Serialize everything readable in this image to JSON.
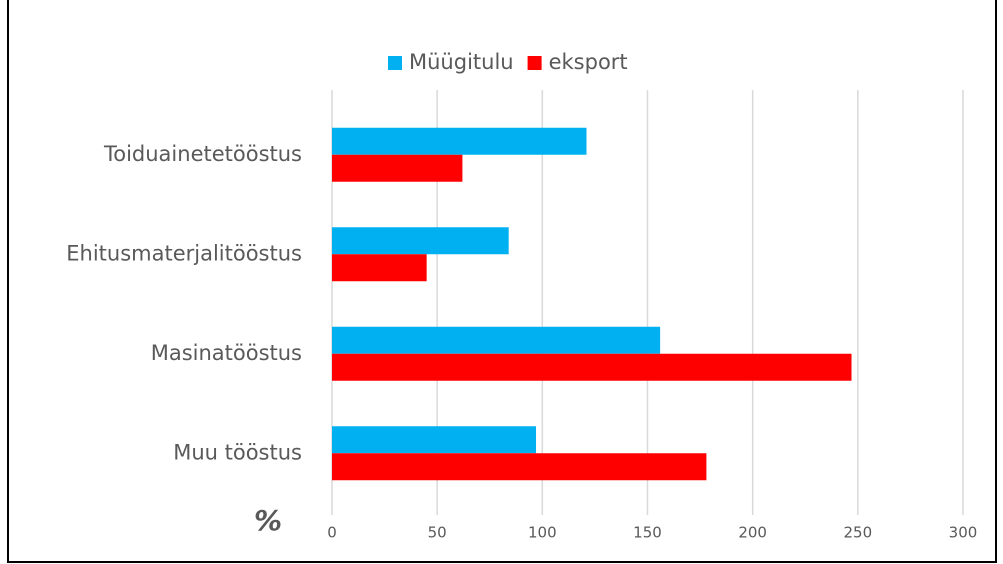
{
  "chart_data": {
    "type": "hbar",
    "categories": [
      "Toiduainetetööstus",
      "Ehitusmaterjalitööstus",
      "Masinatööstus",
      "Muu tööstus"
    ],
    "series": [
      {
        "name": "Müügitulu",
        "color": "#00b0f0",
        "values": [
          121,
          84,
          156,
          97
        ]
      },
      {
        "name": "eksport",
        "color": "#ff0000",
        "values": [
          62,
          45,
          247,
          178
        ]
      }
    ],
    "xlabel": "%",
    "xlim": [
      0,
      300
    ],
    "xticks": [
      0,
      50,
      100,
      150,
      200,
      250,
      300
    ],
    "grid": true,
    "legend": "top"
  }
}
